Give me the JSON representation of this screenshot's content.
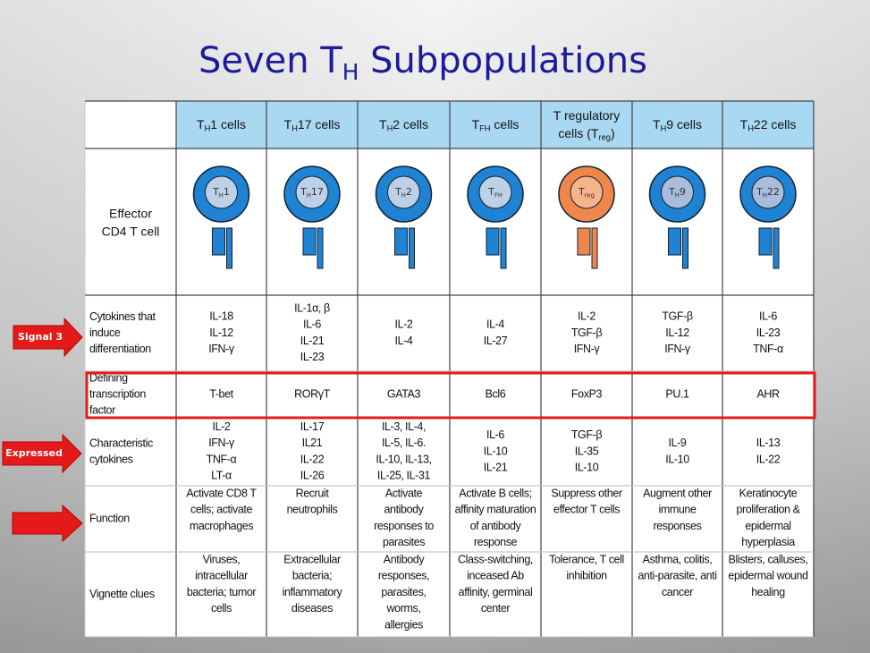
{
  "title": [
    {
      "text": "Seven T"
    },
    {
      "sub": "H"
    },
    {
      "text": " Subpopulations"
    }
  ],
  "columns": [
    [
      [
        {
          "text": "T"
        },
        {
          "sub": "H"
        },
        {
          "text": "1 cells"
        }
      ]
    ],
    [
      [
        {
          "text": "T"
        },
        {
          "sub": "H"
        },
        {
          "text": "17 cells"
        }
      ]
    ],
    [
      [
        {
          "text": "T"
        },
        {
          "sub": "H"
        },
        {
          "text": "2 cells"
        }
      ]
    ],
    [
      [
        {
          "text": "T"
        },
        {
          "sub": "FH"
        },
        {
          "text": " cells"
        }
      ]
    ],
    [
      [
        {
          "text": "T regulatory"
        }
      ],
      [
        {
          "text": "cells (T"
        },
        {
          "sub": "reg"
        },
        {
          "text": ")"
        }
      ]
    ],
    [
      [
        {
          "text": "T"
        },
        {
          "sub": "H"
        },
        {
          "text": "9 cells"
        }
      ]
    ],
    [
      [
        {
          "text": "T"
        },
        {
          "sub": "H"
        },
        {
          "text": "22 cells"
        }
      ]
    ]
  ],
  "effector_label": [
    "Effector",
    "CD4 T cell"
  ],
  "cell_labels": [
    [
      {
        "text": "T"
      },
      {
        "sub": "H"
      },
      {
        "text": "1"
      }
    ],
    [
      {
        "text": "T"
      },
      {
        "sub": "H"
      },
      {
        "text": "17"
      }
    ],
    [
      {
        "text": "T"
      },
      {
        "sub": "H"
      },
      {
        "text": "2"
      }
    ],
    [
      {
        "text": "T"
      },
      {
        "sub": "FH"
      }
    ],
    [
      {
        "text": "T"
      },
      {
        "sub": "reg"
      }
    ],
    [
      {
        "text": "T"
      },
      {
        "sub": "H"
      },
      {
        "text": "9"
      }
    ],
    [
      {
        "text": "T"
      },
      {
        "sub": "H"
      },
      {
        "text": "22"
      }
    ]
  ],
  "rows": [
    {
      "label": [
        "Cytokines that",
        "induce",
        "differentiation"
      ],
      "cells": [
        [
          "IL-18",
          "IL-12",
          "IFN-γ"
        ],
        [
          "IL-1α, β",
          "IL-6",
          "IL-21",
          "IL-23"
        ],
        [
          "IL-2",
          "IL-4"
        ],
        [
          "IL-4",
          "IL-27"
        ],
        [
          "IL-2",
          "TGF-β",
          "IFN-γ"
        ],
        [
          "TGF-β",
          "IL-12",
          "IFN-γ"
        ],
        [
          "IL-6",
          "IL-23",
          "TNF-α"
        ]
      ]
    },
    {
      "label": [
        "Defining",
        "transcription",
        "factor"
      ],
      "cells": [
        [
          "T-bet"
        ],
        [
          "RORγT"
        ],
        [
          "GATA3"
        ],
        [
          "Bcl6"
        ],
        [
          "FoxP3"
        ],
        [
          "PU.1"
        ],
        [
          "AHR"
        ]
      ]
    },
    {
      "label": [
        "Characteristic",
        "cytokines"
      ],
      "cells": [
        [
          "IL-2",
          "IFN-γ",
          "TNF-α",
          "LT-α"
        ],
        [
          "IL-17",
          "IL21",
          "IL-22",
          "IL-26"
        ],
        [
          "IL-3, IL-4,",
          "IL-5, IL-6.",
          "IL-10, IL-13,",
          "IL-25, IL-31"
        ],
        [
          "IL-6",
          "IL-10",
          "IL-21"
        ],
        [
          "TGF-β",
          "IL-35",
          "IL-10"
        ],
        [
          "IL-9",
          "IL-10"
        ],
        [
          "IL-13",
          "IL-22"
        ]
      ]
    },
    {
      "label": [
        "Function"
      ],
      "cells": [
        [
          "Activate CD8 T",
          "cells; activate",
          "macrophages"
        ],
        [
          "Recruit",
          "neutrophils"
        ],
        [
          "Activate",
          "antibody",
          "responses to",
          "parasites"
        ],
        [
          "Activate B cells;",
          "affinity maturation",
          "of antibody",
          "response"
        ],
        [
          "Suppress other",
          "effector T cells"
        ],
        [
          "Augment other",
          "immune",
          "responses"
        ],
        [
          "Keratinocyte",
          "proliferation &",
          "epidermal",
          "hyperplasia"
        ]
      ]
    },
    {
      "label": [
        "Vignette clues"
      ],
      "cells": [
        [
          "Viruses,",
          "intracellular",
          "bacteria; tumor",
          "cells"
        ],
        [
          "Extracellular",
          "bacteria;",
          "inflammatory",
          "diseases"
        ],
        [
          "Antibody",
          "responses,",
          "parasites,",
          "worms,",
          "allergies"
        ],
        [
          "Class-switching,",
          "inceased Ab",
          "affinity, germinal",
          "center"
        ],
        [
          "Tolerance, T cell",
          "inhibition"
        ],
        [
          "Asthma, colitis,",
          "anti-parasite, anti",
          "cancer"
        ],
        [
          "Blisters, calluses,",
          "epidermal wound",
          "healing"
        ]
      ]
    }
  ],
  "side_labels": [
    "Signal 3",
    "Expressed"
  ]
}
